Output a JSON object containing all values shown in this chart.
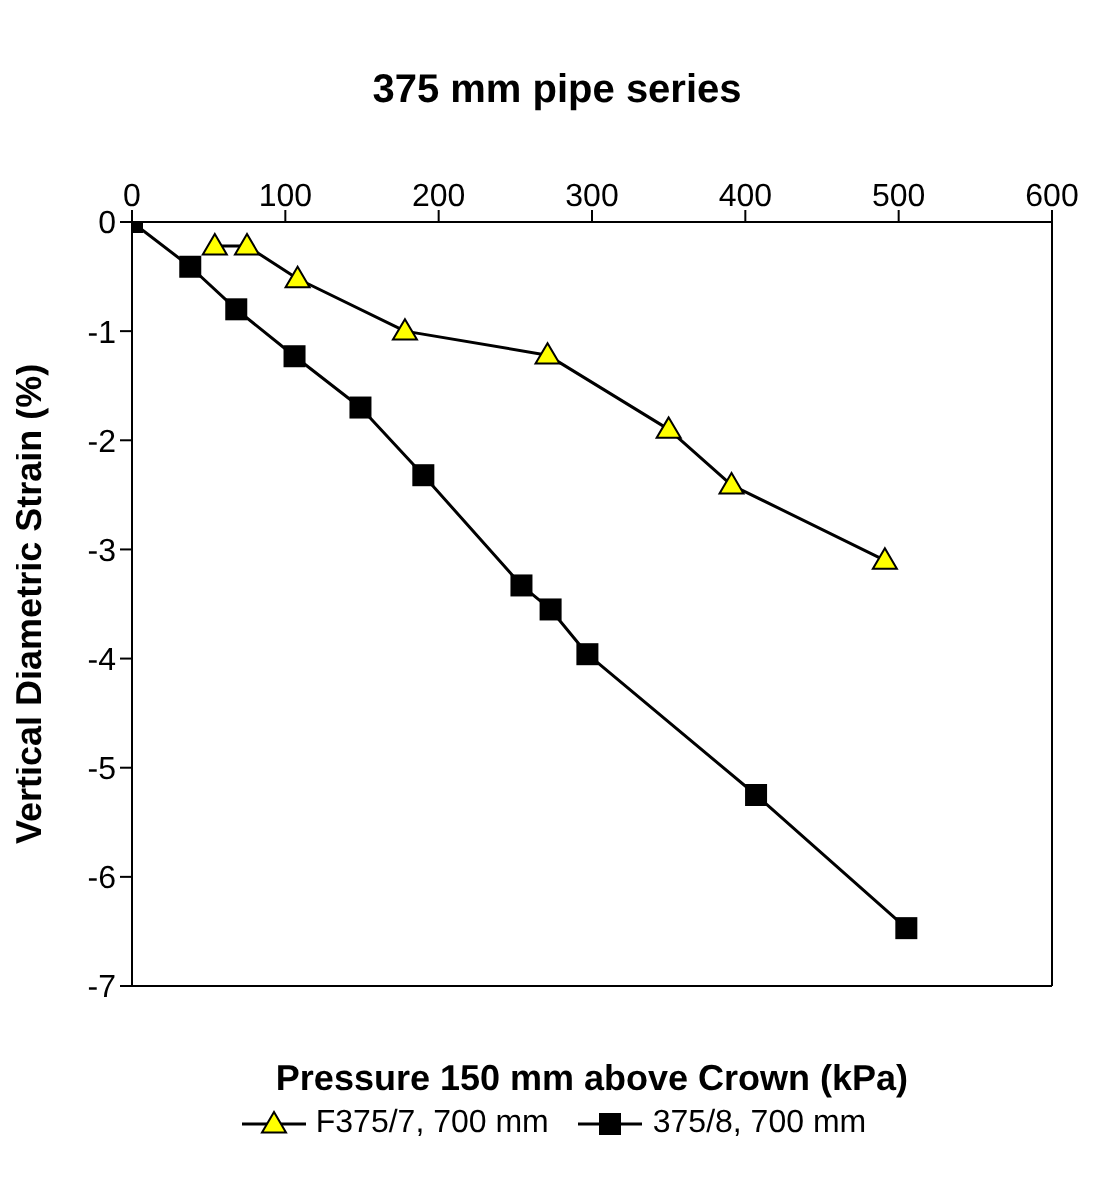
{
  "chart_data": {
    "type": "line",
    "title": "375 mm pipe series",
    "xlabel": "Pressure 150 mm above Crown (kPa)",
    "ylabel": "Vertical Diametric Strain (%)",
    "xlim": [
      0,
      600
    ],
    "xticks": [
      0,
      100,
      200,
      300,
      400,
      500,
      600
    ],
    "ylim": [
      -7,
      0
    ],
    "yticks": [
      -7,
      -6,
      -5,
      -4,
      -3,
      -2,
      -1,
      0
    ],
    "legend": "bottom",
    "series": [
      {
        "name": "F375/7, 700 mm",
        "color": "#ffff00",
        "marker": "triangle",
        "x": [
          54,
          75,
          108,
          178,
          271,
          350,
          391,
          491
        ],
        "values": [
          -0.22,
          -0.22,
          -0.52,
          -1.0,
          -1.22,
          -1.9,
          -2.41,
          -3.1
        ]
      },
      {
        "name": "375/8, 700 mm",
        "color": "#000000",
        "marker": "square",
        "x": [
          0,
          38,
          68,
          106,
          149,
          190,
          254,
          273,
          297,
          407,
          505
        ],
        "values": [
          0,
          -0.41,
          -0.8,
          -1.23,
          -1.7,
          -2.32,
          -3.33,
          -3.55,
          -3.96,
          -5.25,
          -6.47
        ]
      }
    ]
  }
}
